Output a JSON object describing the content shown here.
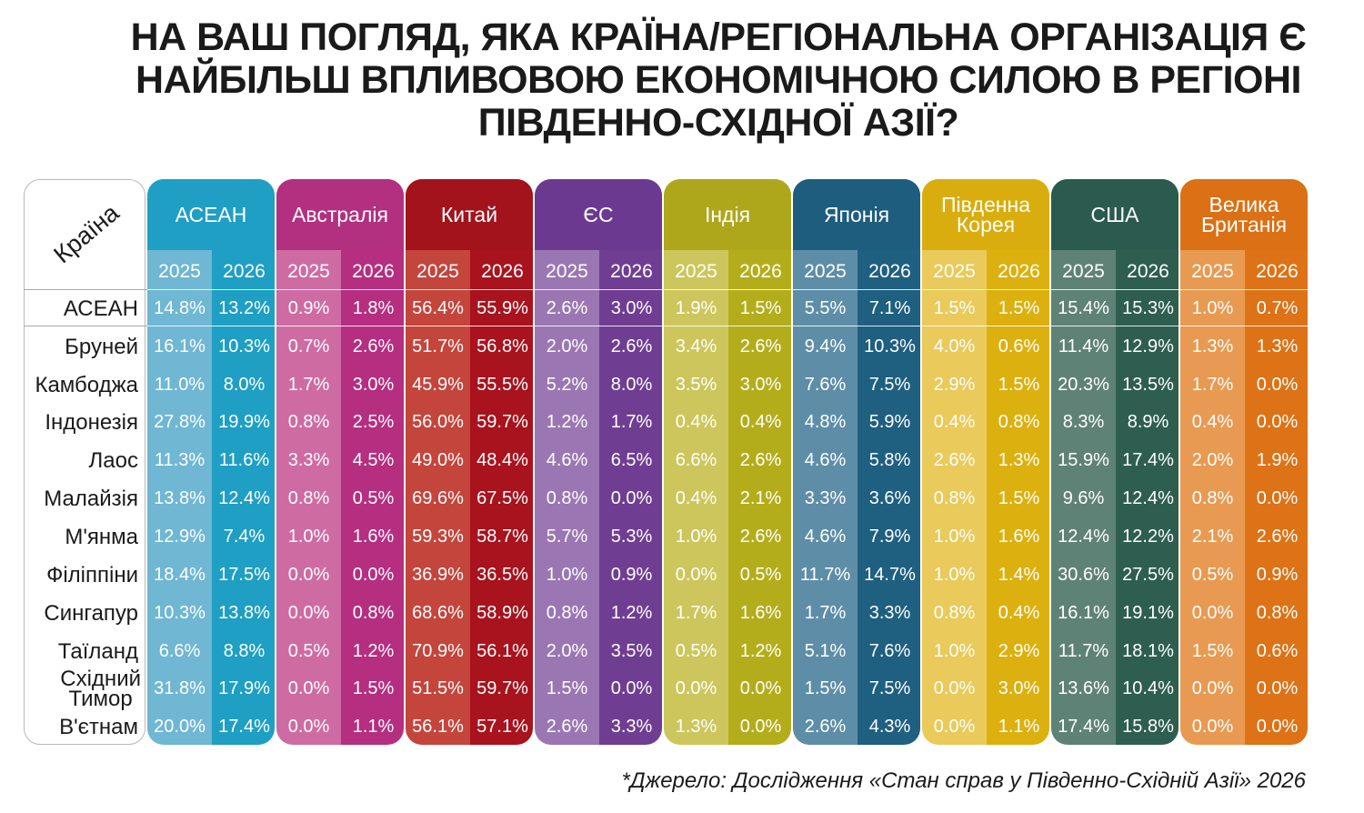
{
  "title_lines": [
    "НА ВАШ ПОГЛЯД, ЯКА КРАЇНА/РЕГІОНАЛЬНА ОРГАНІЗАЦІЯ Є",
    "НАЙБІЛЬШ ВПЛИВОВОЮ ЕКОНОМІЧНОЮ СИЛОЮ В РЕГІОНІ",
    "ПІВДЕННО-СХІДНОЇ АЗІЇ?"
  ],
  "row_header": "Країна",
  "source": "*Джерело: Дослідження «Стан справ у Південно-Східній Азії» 2026",
  "chart_data": {
    "type": "table",
    "years": [
      "2025",
      "2026"
    ],
    "series": [
      {
        "name": "АСЕАН",
        "color_light": "#6fb7d3",
        "color_dark": "#1e9fc3",
        "color_head": "#1f9fc4"
      },
      {
        "name": "Австралія",
        "color_light": "#cf6ba3",
        "color_dark": "#b52e80",
        "color_head": "#b2307f"
      },
      {
        "name": "Китай",
        "color_light": "#c4453c",
        "color_dark": "#a8131d",
        "color_head": "#a3131c"
      },
      {
        "name": "ЄС",
        "color_light": "#9a77b3",
        "color_dark": "#6f3e92",
        "color_head": "#6b3a90"
      },
      {
        "name": "Індія",
        "color_light": "#cdc65c",
        "color_dark": "#b4ad1b",
        "color_head": "#aea71c"
      },
      {
        "name": "Японія",
        "color_light": "#5e8ea7",
        "color_dark": "#1f5f80",
        "color_head": "#1e5d7e"
      },
      {
        "name": "Південна Корея",
        "color_light": "#e9ca5a",
        "color_dark": "#dcb00f",
        "color_head": "#d9ad0e"
      },
      {
        "name": "США",
        "color_light": "#5f8277",
        "color_dark": "#2e5e50",
        "color_head": "#2b5b4e"
      },
      {
        "name": "Велика Британія",
        "color_light": "#e89a52",
        "color_dark": "#dd7216",
        "color_head": "#db7014"
      }
    ],
    "rows": [
      {
        "country": "АСЕАН",
        "values": [
          "14.8%",
          "13.2%",
          "0.9%",
          "1.8%",
          "56.4%",
          "55.9%",
          "2.6%",
          "3.0%",
          "1.9%",
          "1.5%",
          "5.5%",
          "7.1%",
          "1.5%",
          "1.5%",
          "15.4%",
          "15.3%",
          "1.0%",
          "0.7%"
        ]
      },
      {
        "country": "Бруней",
        "values": [
          "16.1%",
          "10.3%",
          "0.7%",
          "2.6%",
          "51.7%",
          "56.8%",
          "2.0%",
          "2.6%",
          "3.4%",
          "2.6%",
          "9.4%",
          "10.3%",
          "4.0%",
          "0.6%",
          "11.4%",
          "12.9%",
          "1.3%",
          "1.3%"
        ]
      },
      {
        "country": "Камбоджа",
        "values": [
          "11.0%",
          "8.0%",
          "1.7%",
          "3.0%",
          "45.9%",
          "55.5%",
          "5.2%",
          "8.0%",
          "3.5%",
          "3.0%",
          "7.6%",
          "7.5%",
          "2.9%",
          "1.5%",
          "20.3%",
          "13.5%",
          "1.7%",
          "0.0%"
        ]
      },
      {
        "country": "Індонезія",
        "values": [
          "27.8%",
          "19.9%",
          "0.8%",
          "2.5%",
          "56.0%",
          "59.7%",
          "1.2%",
          "1.7%",
          "0.4%",
          "0.4%",
          "4.8%",
          "5.9%",
          "0.4%",
          "0.8%",
          "8.3%",
          "8.9%",
          "0.4%",
          "0.0%"
        ]
      },
      {
        "country": "Лаос",
        "values": [
          "11.3%",
          "11.6%",
          "3.3%",
          "4.5%",
          "49.0%",
          "48.4%",
          "4.6%",
          "6.5%",
          "6.6%",
          "2.6%",
          "4.6%",
          "5.8%",
          "2.6%",
          "1.3%",
          "15.9%",
          "17.4%",
          "2.0%",
          "1.9%"
        ]
      },
      {
        "country": "Малайзія",
        "values": [
          "13.8%",
          "12.4%",
          "0.8%",
          "0.5%",
          "69.6%",
          "67.5%",
          "0.8%",
          "0.0%",
          "0.4%",
          "2.1%",
          "3.3%",
          "3.6%",
          "0.8%",
          "1.5%",
          "9.6%",
          "12.4%",
          "0.8%",
          "0.0%"
        ]
      },
      {
        "country": "М'янма",
        "values": [
          "12.9%",
          "7.4%",
          "1.0%",
          "1.6%",
          "59.3%",
          "58.7%",
          "5.7%",
          "5.3%",
          "1.0%",
          "2.6%",
          "4.6%",
          "7.9%",
          "1.0%",
          "1.6%",
          "12.4%",
          "12.2%",
          "2.1%",
          "2.6%"
        ]
      },
      {
        "country": "Філіппіни",
        "values": [
          "18.4%",
          "17.5%",
          "0.0%",
          "0.0%",
          "36.9%",
          "36.5%",
          "1.0%",
          "0.9%",
          "0.0%",
          "0.5%",
          "11.7%",
          "14.7%",
          "1.0%",
          "1.4%",
          "30.6%",
          "27.5%",
          "0.5%",
          "0.9%"
        ]
      },
      {
        "country": "Сингапур",
        "values": [
          "10.3%",
          "13.8%",
          "0.0%",
          "0.8%",
          "68.6%",
          "58.9%",
          "0.8%",
          "1.2%",
          "1.7%",
          "1.6%",
          "1.7%",
          "3.3%",
          "0.8%",
          "0.4%",
          "16.1%",
          "19.1%",
          "0.0%",
          "0.8%"
        ]
      },
      {
        "country": "Таїланд",
        "values": [
          "6.6%",
          "8.8%",
          "0.5%",
          "1.2%",
          "70.9%",
          "56.1%",
          "2.0%",
          "3.5%",
          "0.5%",
          "1.2%",
          "5.1%",
          "7.6%",
          "1.0%",
          "2.9%",
          "11.7%",
          "18.1%",
          "1.5%",
          "0.6%"
        ]
      },
      {
        "country": "Східний Тимор",
        "values": [
          "31.8%",
          "17.9%",
          "0.0%",
          "1.5%",
          "51.5%",
          "59.7%",
          "1.5%",
          "0.0%",
          "0.0%",
          "0.0%",
          "1.5%",
          "7.5%",
          "0.0%",
          "3.0%",
          "13.6%",
          "10.4%",
          "0.0%",
          "0.0%"
        ]
      },
      {
        "country": "В'єтнам",
        "values": [
          "20.0%",
          "17.4%",
          "0.0%",
          "1.1%",
          "56.1%",
          "57.1%",
          "2.6%",
          "3.3%",
          "1.3%",
          "0.0%",
          "2.6%",
          "4.3%",
          "0.0%",
          "1.1%",
          "17.4%",
          "15.8%",
          "0.0%",
          "0.0%"
        ]
      }
    ]
  }
}
